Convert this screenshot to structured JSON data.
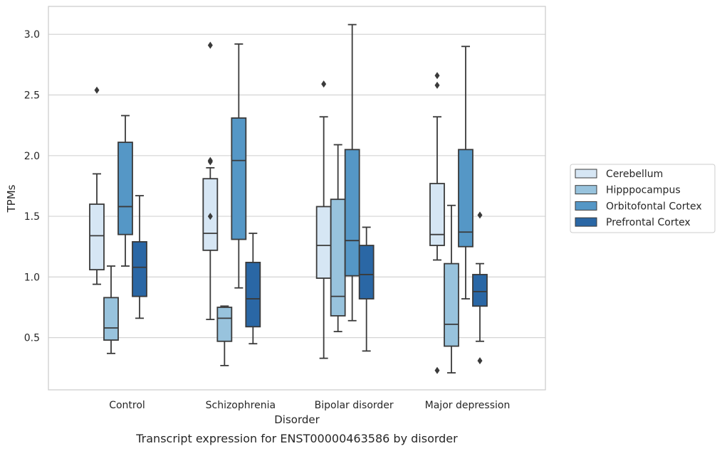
{
  "chart_data": {
    "type": "box",
    "title": "",
    "caption": "Transcript expression for ENST00000463586 by disorder",
    "xlabel": "Disorder",
    "ylabel": "TPMs",
    "ylim": [
      0.07,
      3.23
    ],
    "yticks": [
      0.5,
      1.0,
      1.5,
      2.0,
      2.5,
      3.0
    ],
    "ytick_labels": [
      "0.5",
      "1.0",
      "1.5",
      "2.0",
      "2.5",
      "3.0"
    ],
    "grid": true,
    "legend_position": "right",
    "categories": [
      "Control",
      "Schizophrenia",
      "Bipolar disorder",
      "Major depression"
    ],
    "series": [
      {
        "name": "Cerebellum",
        "color": "#d6e6f4",
        "boxes": [
          {
            "whisker_low": 0.94,
            "q1": 1.06,
            "median": 1.34,
            "q3": 1.6,
            "whisker_high": 1.85,
            "outliers": [
              2.54
            ]
          },
          {
            "whisker_low": 0.65,
            "q1": 1.22,
            "median": 1.36,
            "q3": 1.81,
            "whisker_high": 1.9,
            "outliers": [
              2.91,
              1.96,
              1.95,
              1.5
            ]
          },
          {
            "whisker_low": 0.33,
            "q1": 0.99,
            "median": 1.26,
            "q3": 1.58,
            "whisker_high": 2.32,
            "outliers": [
              2.59
            ]
          },
          {
            "whisker_low": 1.14,
            "q1": 1.26,
            "median": 1.35,
            "q3": 1.77,
            "whisker_high": 2.32,
            "outliers": [
              2.66,
              2.58,
              0.23
            ]
          }
        ]
      },
      {
        "name": "Hipppocampus",
        "color": "#98c3dd",
        "boxes": [
          {
            "whisker_low": 0.37,
            "q1": 0.48,
            "median": 0.58,
            "q3": 0.83,
            "whisker_high": 1.09,
            "outliers": []
          },
          {
            "whisker_low": 0.27,
            "q1": 0.47,
            "median": 0.66,
            "q3": 0.75,
            "whisker_high": 0.76,
            "outliers": []
          },
          {
            "whisker_low": 0.55,
            "q1": 0.68,
            "median": 0.84,
            "q3": 1.64,
            "whisker_high": 2.09,
            "outliers": []
          },
          {
            "whisker_low": 0.21,
            "q1": 0.43,
            "median": 0.61,
            "q3": 1.11,
            "whisker_high": 1.59,
            "outliers": []
          }
        ]
      },
      {
        "name": "Orbitofontal Cortex",
        "color": "#5597c6",
        "boxes": [
          {
            "whisker_low": 1.09,
            "q1": 1.35,
            "median": 1.58,
            "q3": 2.11,
            "whisker_high": 2.33,
            "outliers": []
          },
          {
            "whisker_low": 0.91,
            "q1": 1.31,
            "median": 1.96,
            "q3": 2.31,
            "whisker_high": 2.92,
            "outliers": []
          },
          {
            "whisker_low": 0.64,
            "q1": 1.01,
            "median": 1.3,
            "q3": 2.05,
            "whisker_high": 3.08,
            "outliers": []
          },
          {
            "whisker_low": 0.82,
            "q1": 1.25,
            "median": 1.37,
            "q3": 2.05,
            "whisker_high": 2.9,
            "outliers": []
          }
        ]
      },
      {
        "name": "Prefrontal Cortex",
        "color": "#2a67a5",
        "boxes": [
          {
            "whisker_low": 0.66,
            "q1": 0.84,
            "median": 1.08,
            "q3": 1.29,
            "whisker_high": 1.67,
            "outliers": []
          },
          {
            "whisker_low": 0.45,
            "q1": 0.59,
            "median": 0.82,
            "q3": 1.12,
            "whisker_high": 1.36,
            "outliers": []
          },
          {
            "whisker_low": 0.39,
            "q1": 0.82,
            "median": 1.02,
            "q3": 1.26,
            "whisker_high": 1.41,
            "outliers": []
          },
          {
            "whisker_low": 0.47,
            "q1": 0.76,
            "median": 0.88,
            "q3": 1.02,
            "whisker_high": 1.11,
            "outliers": [
              1.51,
              0.31
            ]
          }
        ]
      }
    ]
  }
}
